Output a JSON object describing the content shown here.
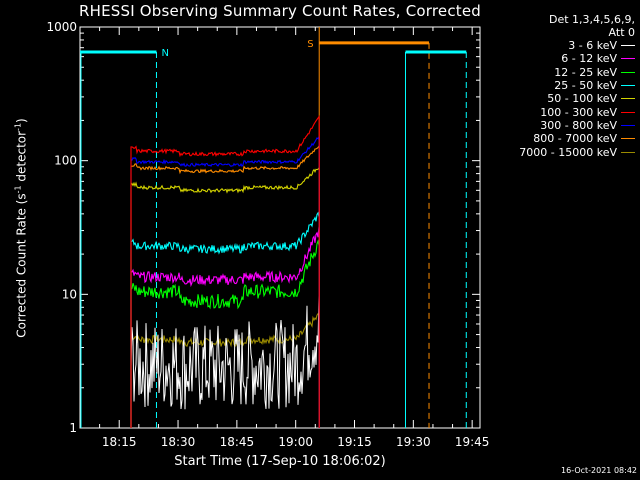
{
  "chart_data": {
    "type": "line",
    "title": "RHESSI Observing Summary Count Rates, Corrected",
    "xlabel": "Start Time (17-Sep-10 18:06:02)",
    "ylabel_main": "Corrected Count Rate (s",
    "ylabel_sup1": "-1",
    "ylabel_mid": " detector",
    "ylabel_sup2": "-1",
    "ylabel_end": ")",
    "y_scale": "log",
    "ylim": [
      1,
      1000
    ],
    "xlim_minutes": [
      0,
      102
    ],
    "x_ticks": [
      {
        "m": 10,
        "label": "18:15"
      },
      {
        "m": 25,
        "label": "18:30"
      },
      {
        "m": 40,
        "label": "18:45"
      },
      {
        "m": 55,
        "label": "19:00"
      },
      {
        "m": 70,
        "label": "19:15"
      },
      {
        "m": 85,
        "label": "19:30"
      },
      {
        "m": 100,
        "label": "19:45"
      }
    ],
    "y_ticks": [
      {
        "v": 1,
        "label": "1"
      },
      {
        "v": 10,
        "label": "10"
      },
      {
        "v": 100,
        "label": "100"
      },
      {
        "v": 1000,
        "label": "1000"
      }
    ],
    "legend_header": [
      "Det 1,3,4,5,6,9,",
      "Att 0"
    ],
    "series": [
      {
        "name": "3 - 6 keV",
        "color": "#ffffff",
        "base": 3.0,
        "noise": 0.35,
        "end": 6
      },
      {
        "name": "6 - 12 keV",
        "color": "#ff00ff",
        "base": 13.5,
        "noise": 0.09,
        "end": 30
      },
      {
        "name": "12 - 25 keV",
        "color": "#00ff00",
        "base": 10.5,
        "noise": 0.12,
        "end": 25
      },
      {
        "name": "25 - 50 keV",
        "color": "#00ffff",
        "base": 23.0,
        "noise": 0.07,
        "end": 40
      },
      {
        "name": "50 - 100 keV",
        "color": "#d4d400",
        "base": 63.0,
        "noise": 0.03,
        "end": 90
      },
      {
        "name": "100 - 300 keV",
        "color": "#ff0000",
        "base": 118.0,
        "noise": 0.03,
        "end": 210
      },
      {
        "name": "300 - 800 keV",
        "color": "#0000ff",
        "base": 98.0,
        "noise": 0.025,
        "end": 150
      },
      {
        "name": "800 - 7000 keV",
        "color": "#ff8c00",
        "base": 88.0,
        "noise": 0.025,
        "end": 130
      },
      {
        "name": "7000 - 15000 keV",
        "color": "#9a8a00",
        "base": 4.6,
        "noise": 0.07,
        "end": 7
      }
    ],
    "data_start_min": 13,
    "data_end_min": 61,
    "events": [
      {
        "label": "N",
        "color": "#00ffff",
        "level": 650,
        "start": 0,
        "end": 19.5,
        "style": "night-start"
      },
      {
        "label": "S",
        "color": "#ff8c00",
        "level": 760,
        "start": 61,
        "end": 89,
        "style": "saa"
      },
      {
        "label": "",
        "color": "#00ffff",
        "level": 650,
        "start": 83,
        "end": 98.5,
        "style": "night-end"
      }
    ],
    "timestamp": "16-Oct-2021 08:42"
  }
}
